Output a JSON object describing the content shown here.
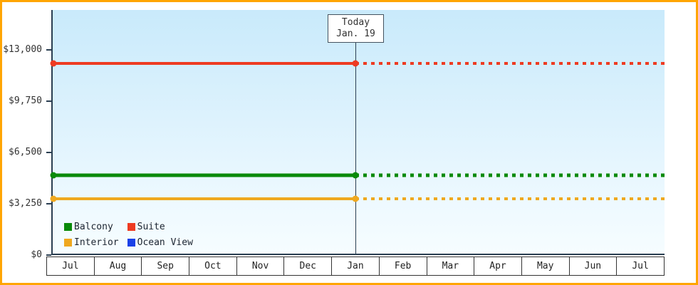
{
  "chart_data": {
    "type": "line",
    "title": "",
    "x_ticks": [
      "Jul",
      "Aug",
      "Sep",
      "Oct",
      "Nov",
      "Dec",
      "Jan",
      "Feb",
      "Mar",
      "Apr",
      "May",
      "Jun",
      "Jul"
    ],
    "y_ticks": [
      {
        "value": 0,
        "label": "$0"
      },
      {
        "value": 3250,
        "label": "$3,250"
      },
      {
        "value": 6500,
        "label": "$6,500"
      },
      {
        "value": 9750,
        "label": "$9,750"
      },
      {
        "value": 13000,
        "label": "$13,000"
      }
    ],
    "ylim": [
      0,
      13000
    ],
    "grid": false,
    "legend_position": "bottom-left",
    "today": {
      "line1": "Today",
      "line2": "Jan. 19",
      "month": "Jan"
    },
    "series": [
      {
        "id": "suite",
        "name": "Suite",
        "color": "#ee3b22",
        "value": 12150,
        "visible": true,
        "style": "solid-left-dotted-right"
      },
      {
        "id": "balcony",
        "name": "Balcony",
        "color": "#0a8a0a",
        "value": 5050,
        "visible": true,
        "style": "solid-left-dotted-right"
      },
      {
        "id": "interior",
        "name": "Interior",
        "color": "#efa81f",
        "value": 3550,
        "visible": true,
        "style": "solid-left-dotted-right"
      },
      {
        "id": "ocean-view",
        "name": "Ocean View",
        "color": "#1a41e8",
        "value": null,
        "visible": false,
        "style": "hidden"
      }
    ],
    "legend": [
      {
        "name": "Balcony",
        "color": "#0a8a0a"
      },
      {
        "name": "Suite",
        "color": "#ee3b22"
      },
      {
        "name": "Interior",
        "color": "#efa81f"
      },
      {
        "name": "Ocean View",
        "color": "#1a41e8"
      }
    ]
  },
  "colors": {
    "frame_border": "#ffa500",
    "axis": "#2b3f52",
    "plot_gradient_top": "#c9eafb",
    "plot_gradient_bottom": "#f6fdff"
  }
}
